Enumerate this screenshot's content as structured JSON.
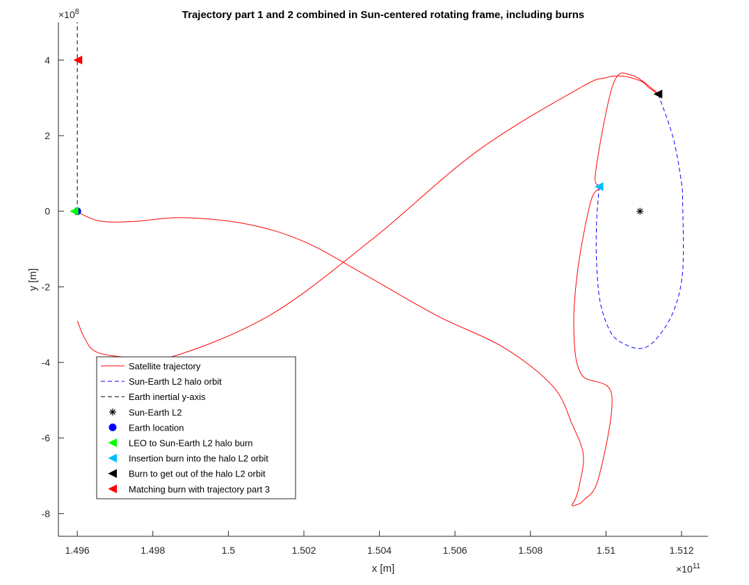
{
  "chart_data": {
    "type": "line",
    "title": "Trajectory part 1 and 2 combined in Sun-centered rotating frame, including burns",
    "xlabel": "x [m]",
    "ylabel": "y [m]",
    "x_exponent_base": "×10",
    "x_exponent_power": "11",
    "y_exponent_base": "×10",
    "y_exponent_power": "8",
    "xlim": [
      1.4955,
      1.5127
    ],
    "ylim": [
      -8.6,
      5.0
    ],
    "xticks": [
      1.496,
      1.498,
      1.5,
      1.502,
      1.504,
      1.506,
      1.508,
      1.51,
      1.512
    ],
    "xtick_labels": [
      "1.496",
      "1.498",
      "1.5",
      "1.502",
      "1.504",
      "1.506",
      "1.508",
      "1.51",
      "1.512"
    ],
    "yticks": [
      4,
      2,
      0,
      -2,
      -4,
      -6,
      -8
    ],
    "ytick_labels": [
      "4",
      "2",
      "0",
      "-2",
      "-4",
      "-6",
      "-8"
    ],
    "grid": false,
    "legend_position": "bottom-left",
    "series": [
      {
        "name": "Satellite trajectory",
        "style": "solid",
        "color": "#ff0000",
        "x": [
          1.496,
          1.4966,
          1.4975,
          1.4988,
          1.5005,
          1.502,
          1.5036,
          1.5055,
          1.5073,
          1.5086,
          1.5091,
          1.5094,
          1.5093,
          1.5092,
          1.5091,
          1.5092,
          1.5094,
          1.5098,
          1.51015,
          1.50935,
          1.50915,
          1.50925,
          1.5096,
          1.50985,
          1.50972,
          1.51019,
          1.51068,
          1.51138,
          1.51112,
          1.51097,
          1.51059,
          1.51027,
          1.50999,
          1.50934,
          1.5066,
          1.5038,
          1.5011,
          1.4985,
          1.4973,
          1.4965,
          1.4962,
          1.496
        ],
        "y": [
          -0.02,
          -0.26,
          -0.27,
          -0.17,
          -0.34,
          -0.8,
          -1.67,
          -2.75,
          -3.61,
          -4.64,
          -5.63,
          -6.44,
          -7.22,
          -7.59,
          -7.78,
          -7.77,
          -7.65,
          -7.07,
          -4.85,
          -4.32,
          -3.19,
          -1.56,
          0.27,
          0.65,
          1.0,
          3.36,
          3.6,
          3.11,
          3.28,
          3.42,
          3.55,
          3.58,
          3.53,
          3.28,
          1.6,
          -0.75,
          -2.75,
          -3.85,
          -3.86,
          -3.72,
          -3.37,
          -2.9
        ]
      },
      {
        "name": "Sun-Earth L2 halo orbit",
        "style": "dashed",
        "color": "#0000ff",
        "x": [
          1.50982,
          1.50975,
          1.50975,
          1.50985,
          1.51013,
          1.51048,
          1.51094,
          1.51134,
          1.51179,
          1.51203,
          1.51203,
          1.51199,
          1.51177,
          1.51138
        ],
        "y": [
          0.65,
          -0.31,
          -1.34,
          -2.42,
          -3.21,
          -3.51,
          -3.63,
          -3.37,
          -2.64,
          -1.59,
          0.2,
          0.82,
          1.97,
          3.1
        ]
      },
      {
        "name": "Earth inertial y-axis",
        "style": "dashed",
        "color": "#000000",
        "x": [
          1.496,
          1.496
        ],
        "y": [
          0.0,
          5.0
        ]
      }
    ],
    "points": [
      {
        "name": "Sun-Earth L2",
        "x": 1.5109,
        "y": 0.0,
        "marker": "star",
        "color": "#000000"
      },
      {
        "name": "Earth location",
        "x": 1.496,
        "y": 0.0,
        "marker": "circle",
        "color": "#0000ff"
      },
      {
        "name": "LEO to Sun-Earth L2 halo burn",
        "x": 1.49592,
        "y": 0.0,
        "marker": "triangle-left",
        "color": "#00ff00"
      },
      {
        "name": "Insertion burn into the halo L2 orbit",
        "x": 1.50982,
        "y": 0.65,
        "marker": "triangle-left",
        "color": "#00bfff"
      },
      {
        "name": "Burn to get out of the halo L2 orbit",
        "x": 1.51138,
        "y": 3.1,
        "marker": "triangle-left",
        "color": "#000000"
      },
      {
        "name": "Matching burn with trajectory part 3",
        "x": 1.49602,
        "y": 4.0,
        "marker": "triangle-left",
        "color": "#ff0000"
      }
    ],
    "legend": [
      {
        "label": "Satellite trajectory",
        "kind": "line",
        "style": "solid",
        "color": "#ff0000"
      },
      {
        "label": "Sun-Earth L2 halo orbit",
        "kind": "line",
        "style": "dashed",
        "color": "#0000ff"
      },
      {
        "label": "Earth inertial y-axis",
        "kind": "line",
        "style": "dashed",
        "color": "#000000"
      },
      {
        "label": "Sun-Earth L2",
        "kind": "marker",
        "marker": "star",
        "color": "#000000"
      },
      {
        "label": "Earth location",
        "kind": "marker",
        "marker": "circle",
        "color": "#0000ff"
      },
      {
        "label": "LEO to Sun-Earth L2 halo burn",
        "kind": "marker",
        "marker": "triangle-left",
        "color": "#00ff00"
      },
      {
        "label": "Insertion burn into the halo L2 orbit",
        "kind": "marker",
        "marker": "triangle-left",
        "color": "#00bfff"
      },
      {
        "label": "Burn to get out of the halo L2 orbit",
        "kind": "marker",
        "marker": "triangle-left",
        "color": "#000000"
      },
      {
        "label": "Matching burn with trajectory part 3",
        "kind": "marker",
        "marker": "triangle-left",
        "color": "#ff0000"
      }
    ]
  }
}
